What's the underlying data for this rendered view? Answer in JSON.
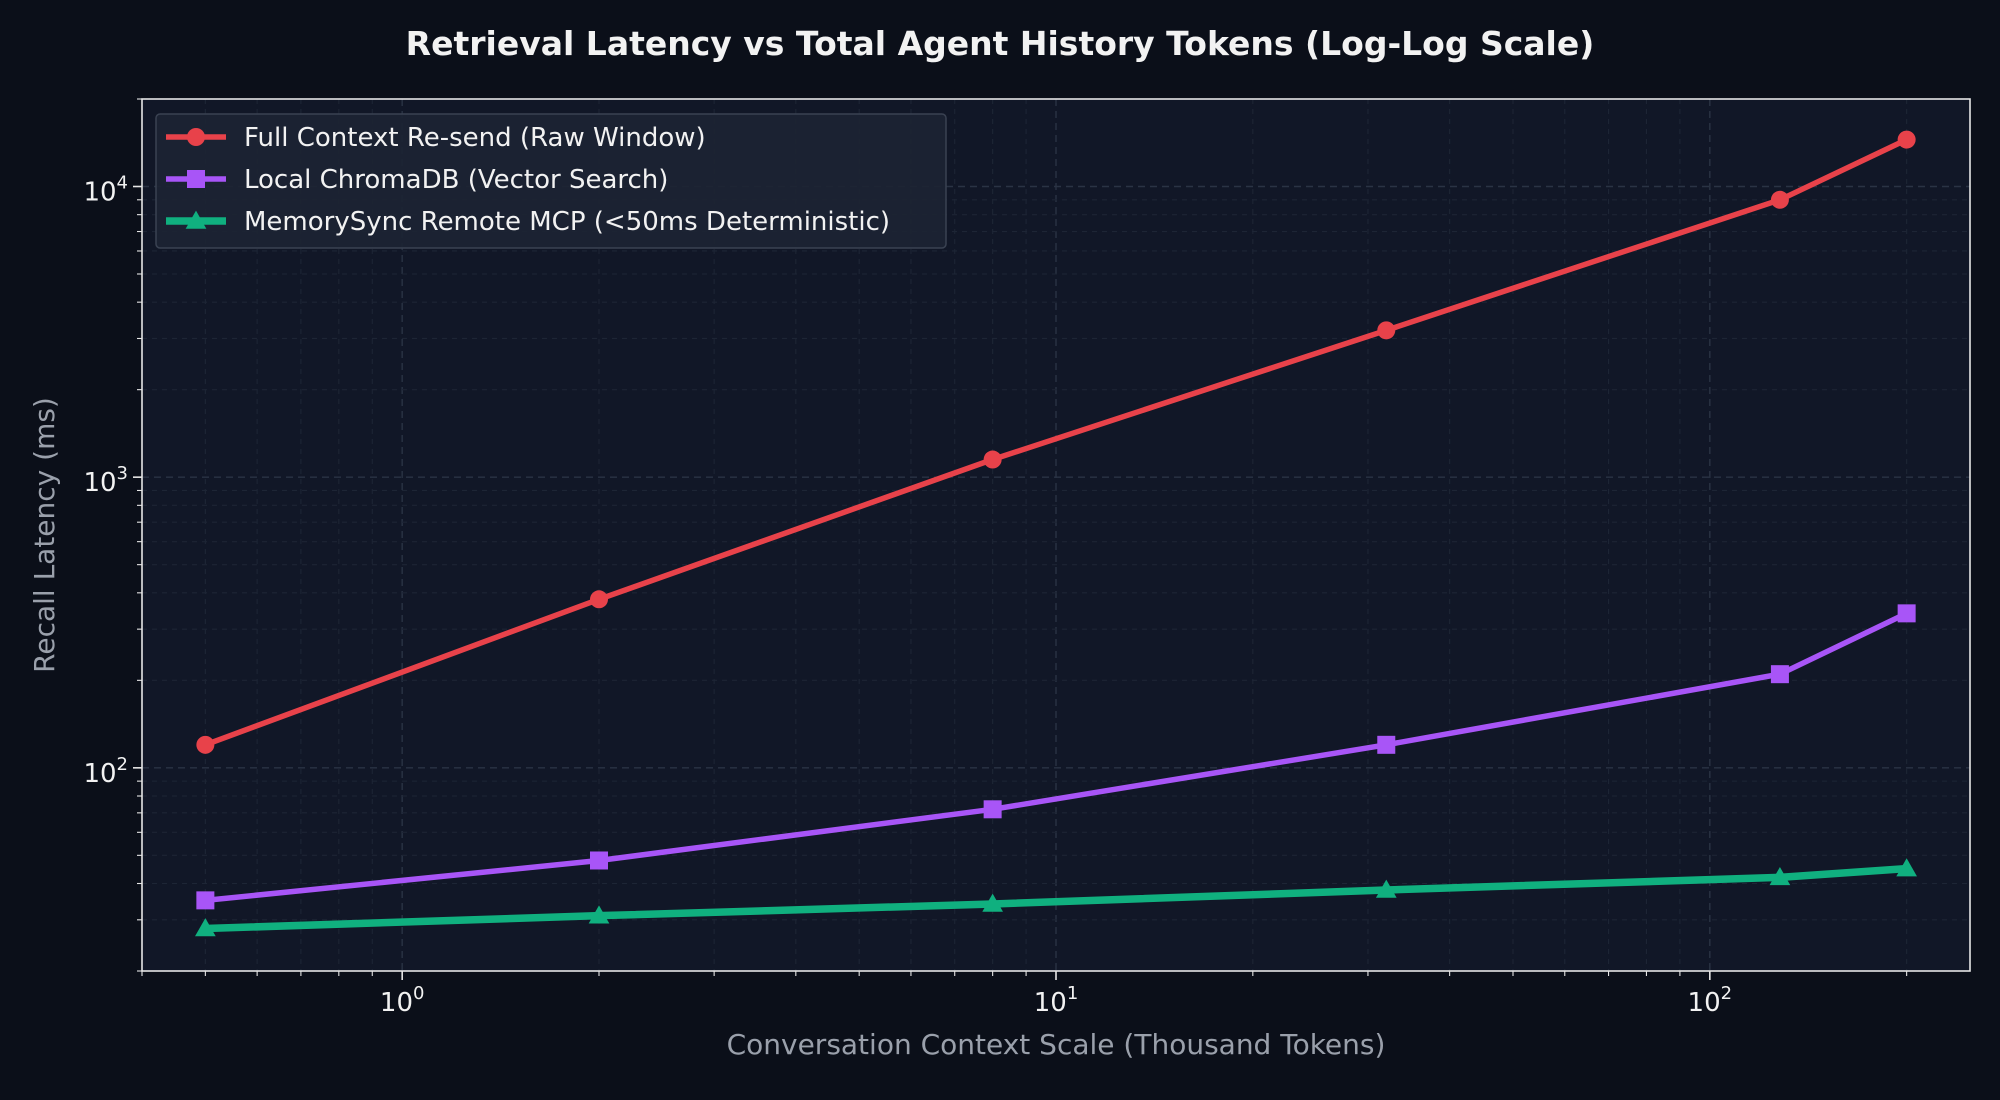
{
  "chart_data": {
    "type": "line",
    "title": "Retrieval Latency vs Total Agent History Tokens (Log-Log Scale)",
    "xlabel": "Conversation Context Scale (Thousand Tokens)",
    "ylabel": "Recall Latency (ms)",
    "xscale": "log",
    "yscale": "log",
    "xlim": [
      0.4,
      250
    ],
    "ylim": [
      20,
      20000
    ],
    "x": [
      0.5,
      2,
      8,
      32,
      128,
      200
    ],
    "xticks": [
      {
        "value": 1,
        "label": "10",
        "exp": "0"
      },
      {
        "value": 10,
        "label": "10",
        "exp": "1"
      },
      {
        "value": 100,
        "label": "10",
        "exp": "2"
      }
    ],
    "yticks": [
      {
        "value": 100,
        "label": "10",
        "exp": "2"
      },
      {
        "value": 1000,
        "label": "10",
        "exp": "3"
      },
      {
        "value": 10000,
        "label": "10",
        "exp": "4"
      }
    ],
    "grid": true,
    "legend_position": "top-left",
    "series": [
      {
        "name": "Full Context Re-send (Raw Window)",
        "color": "#e8424a",
        "marker": "circle",
        "values": [
          120,
          380,
          1150,
          3200,
          9000,
          14500
        ]
      },
      {
        "name": "Local ChromaDB (Vector Search)",
        "color": "#a855f7",
        "marker": "square",
        "values": [
          35,
          48,
          72,
          120,
          210,
          340
        ]
      },
      {
        "name": "MemorySync Remote MCP (<50ms Deterministic)",
        "color": "#10b07f",
        "marker": "triangle",
        "values": [
          28,
          31,
          34,
          38,
          42,
          45
        ]
      }
    ],
    "colors": {
      "background": "#0b0f19",
      "plot_background": "#111727",
      "frame": "#e6e6e6",
      "text": "#f2f2f2",
      "muted_text": "#9aa0ab",
      "legend_background": "#1c2433",
      "legend_border": "#3a4252"
    }
  }
}
